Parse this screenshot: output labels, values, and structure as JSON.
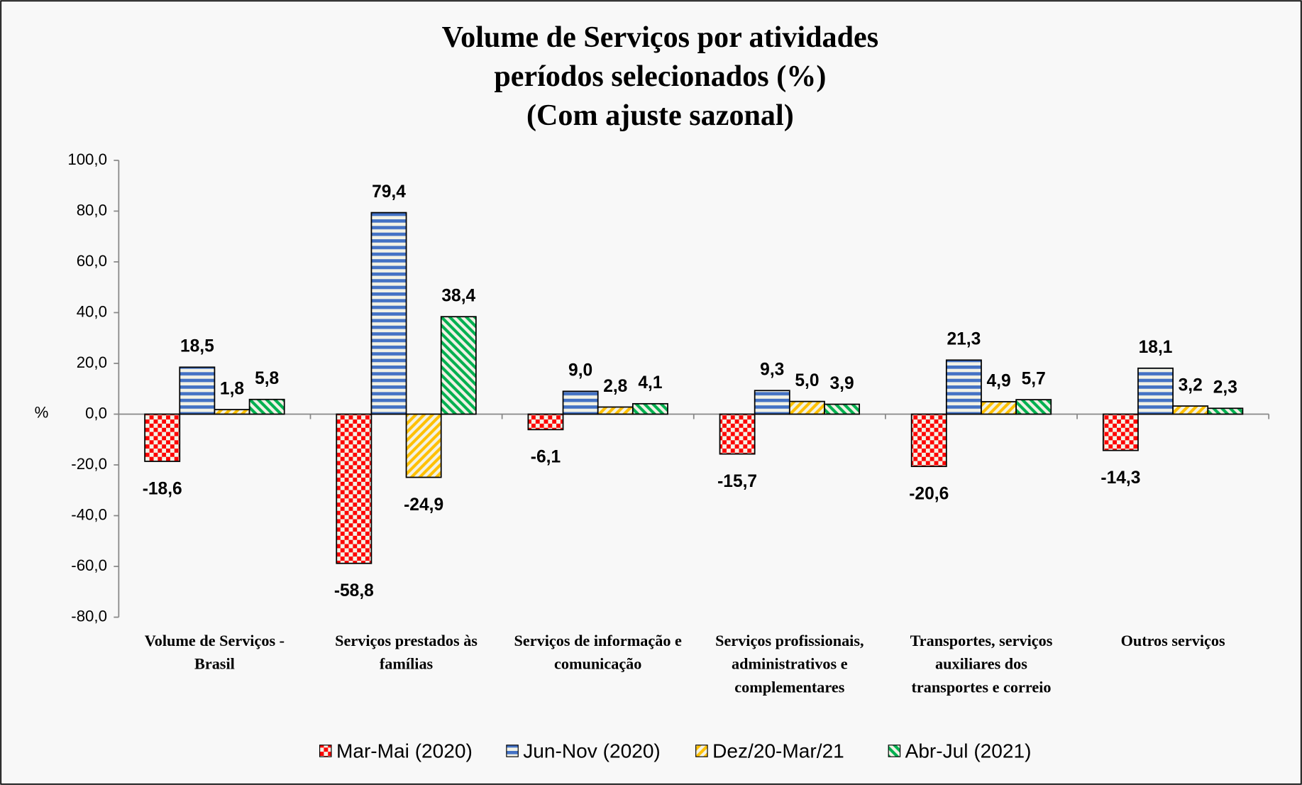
{
  "chart_data": {
    "type": "bar",
    "title": [
      "Volume de Serviços por atividades",
      "períodos selecionados (%)",
      "(Com ajuste sazonal)"
    ],
    "y_label": "%",
    "categories": [
      [
        "Volume de Serviços -",
        "Brasil"
      ],
      [
        "Serviços prestados às",
        "famílias"
      ],
      [
        "Serviços de informação e",
        "comunicação"
      ],
      [
        "Serviços profissionais,",
        "administrativos  e",
        "complementares"
      ],
      [
        "Transportes, serviços",
        "auxiliares dos",
        "transportes e correio"
      ],
      [
        "Outros serviços"
      ]
    ],
    "series": [
      {
        "name": "Mar-Mai (2020)",
        "color": "#ff0000",
        "pattern": "checker",
        "values": [
          -18.6,
          -58.8,
          -6.1,
          -15.7,
          -20.6,
          -14.3
        ],
        "value_labels": [
          "-18,6",
          "-58,8",
          "-6,1",
          "-15,7",
          "-20,6",
          "-14,3"
        ]
      },
      {
        "name": "Jun-Nov (2020)",
        "color": "#4472c4",
        "pattern": "horizontal",
        "values": [
          18.5,
          79.4,
          9.0,
          9.3,
          21.3,
          18.1
        ],
        "value_labels": [
          "18,5",
          "79,4",
          "9,0",
          "9,3",
          "21,3",
          "18,1"
        ]
      },
      {
        "name": "Dez/20-Mar/21",
        "color": "#ffc000",
        "pattern": "diagonal-up",
        "values": [
          1.8,
          -24.9,
          2.8,
          5.0,
          4.9,
          3.2
        ],
        "value_labels": [
          "1,8",
          "-24,9",
          "2,8",
          "5,0",
          "4,9",
          "3,2"
        ]
      },
      {
        "name": "Abr-Jul (2021)",
        "color": "#00b050",
        "pattern": "diagonal-down",
        "values": [
          5.8,
          38.4,
          4.1,
          3.9,
          5.7,
          2.3
        ],
        "value_labels": [
          "5,8",
          "38,4",
          "4,1",
          "3,9",
          "5,7",
          "2,3"
        ]
      }
    ],
    "ylim": [
      -80,
      100
    ],
    "yticks": [
      {
        "value": -80,
        "label": "-80,0"
      },
      {
        "value": -60,
        "label": "-60,0"
      },
      {
        "value": -40,
        "label": "-40,0"
      },
      {
        "value": -20,
        "label": "-20,0"
      },
      {
        "value": 0,
        "label": "0,0"
      },
      {
        "value": 20,
        "label": "20,0"
      },
      {
        "value": 40,
        "label": "40,0"
      },
      {
        "value": 60,
        "label": "60,0"
      },
      {
        "value": 80,
        "label": "80,0"
      },
      {
        "value": 100,
        "label": "100,0"
      }
    ],
    "legend": "bottom"
  }
}
